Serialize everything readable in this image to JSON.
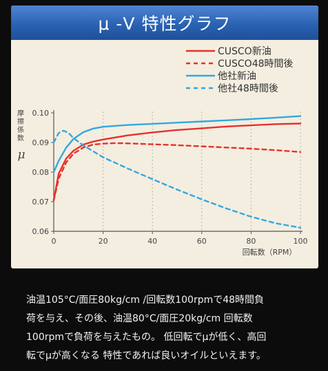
{
  "chart_data": {
    "type": "line",
    "title": "μ -V 特性グラフ",
    "ylabel": "摩擦係数",
    "ysymbol": "μ",
    "xlabel": "回転数（RPM）",
    "xlim": [
      0,
      100
    ],
    "ylim": [
      0.06,
      0.1
    ],
    "xticks": [
      "0",
      "20",
      "40",
      "60",
      "80",
      "100"
    ],
    "yticks": [
      "0.06",
      "0.07",
      "0.08",
      "0.09",
      "0.10"
    ],
    "grid": "vertical dashed",
    "legend_position": "top-right",
    "series": [
      {
        "name": "CUSCO新油",
        "color": "#e8302c",
        "dash": false,
        "x": [
          0,
          2,
          5,
          8,
          12,
          16,
          20,
          30,
          40,
          50,
          60,
          70,
          80,
          90,
          100
        ],
        "y": [
          0.0705,
          0.0795,
          0.0845,
          0.0872,
          0.0893,
          0.0903,
          0.091,
          0.0924,
          0.0934,
          0.0942,
          0.0948,
          0.0954,
          0.0958,
          0.0962,
          0.0964
        ]
      },
      {
        "name": "CUSCO48時間後",
        "color": "#e8302c",
        "dash": true,
        "x": [
          0,
          2,
          5,
          8,
          12,
          16,
          20,
          25,
          30,
          40,
          50,
          60,
          70,
          80,
          90,
          100
        ],
        "y": [
          0.0705,
          0.0778,
          0.0832,
          0.0862,
          0.0883,
          0.0893,
          0.0896,
          0.0898,
          0.0897,
          0.0894,
          0.0891,
          0.0887,
          0.0883,
          0.0879,
          0.0874,
          0.0868
        ]
      },
      {
        "name": "他社新油",
        "color": "#33a7e0",
        "dash": false,
        "x": [
          0,
          2,
          5,
          8,
          12,
          16,
          20,
          30,
          40,
          50,
          60,
          70,
          80,
          90,
          100
        ],
        "y": [
          0.08,
          0.0838,
          0.0882,
          0.0912,
          0.0935,
          0.0947,
          0.0953,
          0.0959,
          0.0963,
          0.0967,
          0.0971,
          0.0975,
          0.0979,
          0.0984,
          0.0989
        ]
      },
      {
        "name": "他社48時間後",
        "color": "#33a7e0",
        "dash": true,
        "x": [
          0,
          2,
          4,
          6,
          8,
          12,
          20,
          30,
          40,
          50,
          60,
          70,
          80,
          90,
          100
        ],
        "y": [
          0.09,
          0.0932,
          0.094,
          0.0932,
          0.0915,
          0.089,
          0.085,
          0.0812,
          0.0776,
          0.0741,
          0.0708,
          0.0677,
          0.0649,
          0.0627,
          0.0612
        ]
      }
    ]
  },
  "description": {
    "lines": [
      "油温105°C/面圧80kg/cm /回転数100rpmで48時間負",
      "荷を与え、その後、油温80°C/面圧20kg/cm 回転数",
      "100rpmで負荷を与えたもの。 低回転でμが低く、高回",
      "転でμが高くなる 特性であれば良いオイルといえます。"
    ]
  }
}
